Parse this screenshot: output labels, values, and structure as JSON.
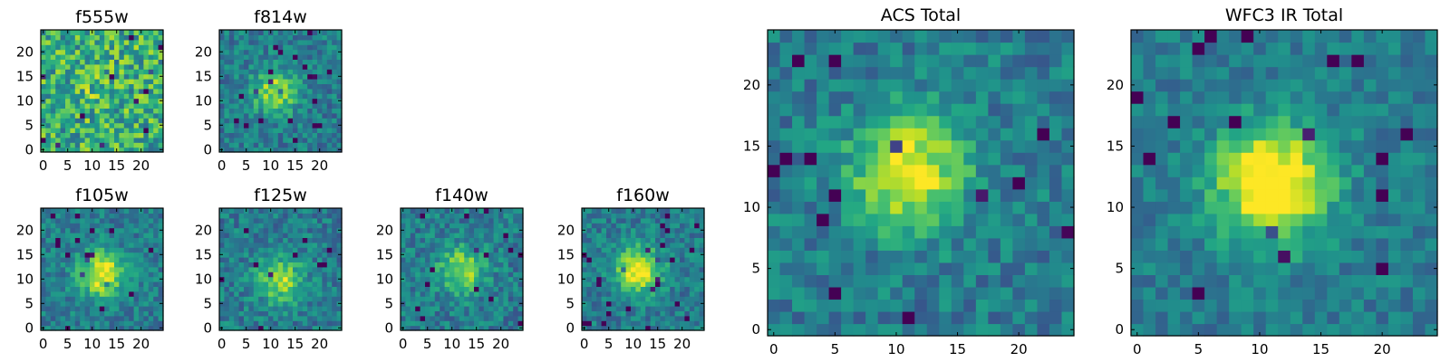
{
  "figure": {
    "colormap": "viridis",
    "panel_titles": [
      "f555w",
      "f814w",
      "f105w",
      "f125w",
      "f140w",
      "f160w",
      "ACS Total",
      "WFC3 IR Total"
    ]
  },
  "chart_data": [
    {
      "type": "heatmap",
      "title": "f555w",
      "grid_size": [
        25,
        25
      ],
      "xlim": [
        0,
        24
      ],
      "ylim": [
        0,
        24
      ],
      "xticks": [
        0,
        5,
        10,
        15,
        20
      ],
      "yticks": [
        0,
        5,
        10,
        15,
        20
      ],
      "peak": [
        11,
        12
      ],
      "signal": "none",
      "color_range": "high-noise"
    },
    {
      "type": "heatmap",
      "title": "f814w",
      "grid_size": [
        25,
        25
      ],
      "xlim": [
        0,
        24
      ],
      "ylim": [
        0,
        24
      ],
      "xticks": [
        0,
        5,
        10,
        15,
        20
      ],
      "yticks": [
        0,
        5,
        10,
        15,
        20
      ],
      "peak": [
        11,
        12
      ],
      "signal": "moderate"
    },
    {
      "type": "heatmap",
      "title": "f105w",
      "grid_size": [
        25,
        25
      ],
      "xlim": [
        0,
        24
      ],
      "ylim": [
        0,
        24
      ],
      "xticks": [
        0,
        5,
        10,
        15,
        20
      ],
      "yticks": [
        0,
        5,
        10,
        15,
        20
      ],
      "peak": [
        12,
        11
      ],
      "signal": "strong"
    },
    {
      "type": "heatmap",
      "title": "f125w",
      "grid_size": [
        25,
        25
      ],
      "xlim": [
        0,
        24
      ],
      "ylim": [
        0,
        24
      ],
      "xticks": [
        0,
        5,
        10,
        15,
        20
      ],
      "yticks": [
        0,
        5,
        10,
        15,
        20
      ],
      "peak": [
        12,
        10
      ],
      "signal": "moderate"
    },
    {
      "type": "heatmap",
      "title": "f140w",
      "grid_size": [
        25,
        25
      ],
      "xlim": [
        0,
        24
      ],
      "ylim": [
        0,
        24
      ],
      "xticks": [
        0,
        5,
        10,
        15,
        20
      ],
      "yticks": [
        0,
        5,
        10,
        15,
        20
      ],
      "peak": [
        12,
        12
      ],
      "signal": "moderate"
    },
    {
      "type": "heatmap",
      "title": "f160w",
      "grid_size": [
        25,
        25
      ],
      "xlim": [
        0,
        24
      ],
      "ylim": [
        0,
        24
      ],
      "xticks": [
        0,
        5,
        10,
        15,
        20
      ],
      "yticks": [
        0,
        5,
        10,
        15,
        20
      ],
      "peak": [
        11,
        12
      ],
      "signal": "strong"
    },
    {
      "type": "heatmap",
      "title": "ACS Total",
      "grid_size": [
        25,
        25
      ],
      "xlim": [
        0,
        24
      ],
      "ylim": [
        0,
        24
      ],
      "xticks": [
        0,
        5,
        10,
        15,
        20
      ],
      "yticks": [
        0,
        5,
        10,
        15,
        20
      ],
      "peak": [
        11,
        13
      ],
      "signal": "strong"
    },
    {
      "type": "heatmap",
      "title": "WFC3 IR Total",
      "grid_size": [
        25,
        25
      ],
      "xlim": [
        0,
        24
      ],
      "ylim": [
        0,
        24
      ],
      "xticks": [
        0,
        5,
        10,
        15,
        20
      ],
      "yticks": [
        0,
        5,
        10,
        15,
        20
      ],
      "peak": [
        11,
        12
      ],
      "signal": "very-strong"
    }
  ]
}
